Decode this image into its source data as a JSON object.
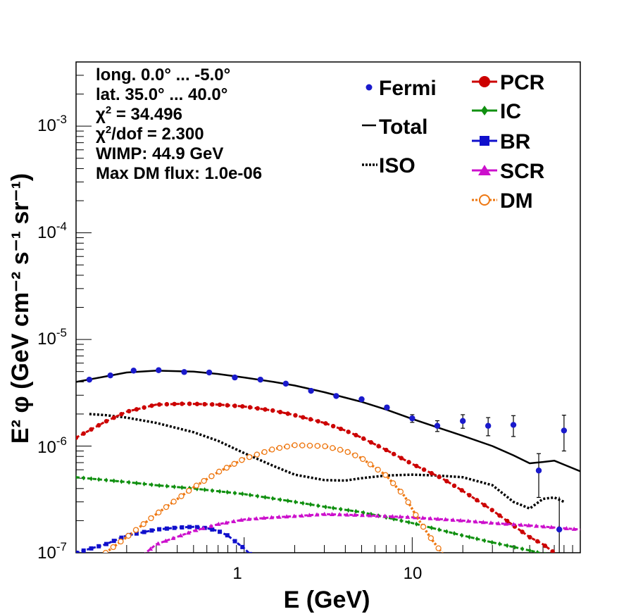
{
  "chart_data": {
    "type": "line",
    "xscale": "log",
    "yscale": "log",
    "xlim": [
      0.1,
      100
    ],
    "ylim": [
      1e-07,
      0.004
    ],
    "xlabel": "E (GeV)",
    "ylabel": "E² φ (GeV cm⁻² s⁻¹ sr⁻¹)",
    "x_ticks": [
      {
        "value": 1,
        "label": "1"
      },
      {
        "value": 10,
        "label": "10"
      }
    ],
    "y_ticks": [
      {
        "value": 1e-07,
        "base": "10",
        "exp": "-7"
      },
      {
        "value": 1e-06,
        "base": "10",
        "exp": "-6"
      },
      {
        "value": 1e-05,
        "base": "10",
        "exp": "-5"
      },
      {
        "value": 0.0001,
        "base": "10",
        "exp": "-4"
      },
      {
        "value": 0.001,
        "base": "10",
        "exp": "-3"
      }
    ],
    "info": {
      "longitude": "long. 0.0° ... -5.0°",
      "latitude": "lat. 35.0° ... 40.0°",
      "chi2_label": "χ",
      "chi2_exp": "2",
      "chi2_value": " = 34.496",
      "chi2dof_label": "χ",
      "chi2dof_exp": "2",
      "chi2dof_value": "/dof = 2.300",
      "wimp": "WIMP: 44.9 GeV",
      "max_dm_flux": "Max DM flux: 1.0e-06"
    },
    "legend": [
      {
        "name": "Fermi",
        "color": "#1010c8",
        "marker": "dot"
      },
      {
        "name": "Total",
        "color": "#000000",
        "marker": "line"
      },
      {
        "name": "ISO",
        "color": "#000000",
        "marker": "dotted"
      },
      {
        "name": "PCR",
        "color": "#cc0000",
        "marker": "circle"
      },
      {
        "name": "IC",
        "color": "#109010",
        "marker": "diamond"
      },
      {
        "name": "BR",
        "color": "#1010cc",
        "marker": "square"
      },
      {
        "name": "SCR",
        "color": "#cc10cc",
        "marker": "triangle"
      },
      {
        "name": "DM",
        "color": "#ee7711",
        "marker": "open-circle"
      }
    ],
    "fermi": {
      "name": "Fermi",
      "color": "#1a1acc",
      "x": [
        0.12,
        0.16,
        0.22,
        0.31,
        0.44,
        0.62,
        0.88,
        1.25,
        1.77,
        2.5,
        3.53,
        5.0,
        7.07,
        10.0,
        14.1,
        20.0,
        28.3,
        40.0,
        56.6,
        80.0
      ],
      "y": [
        4.2e-06,
        4.6e-06,
        5.1e-06,
        5.15e-06,
        4.95e-06,
        4.9e-06,
        4.4e-06,
        4.2e-06,
        3.85e-06,
        3.3e-06,
        2.95e-06,
        2.75e-06,
        2.3e-06,
        1.82e-06,
        1.55e-06,
        1.72e-06,
        1.55e-06,
        1.58e-06,
        5.9e-07,
        1.4e-06
      ],
      "yerr_low": [
        0,
        0,
        0,
        0,
        0,
        0,
        0,
        0,
        0,
        0,
        0,
        0,
        1e-07,
        1.5e-07,
        1.8e-07,
        2.5e-07,
        3e-07,
        3.5e-07,
        2.6e-07,
        5e-07
      ],
      "yerr_high": [
        0,
        0,
        0,
        0,
        0,
        0,
        0,
        0,
        0,
        0,
        0,
        0,
        1e-07,
        1.5e-07,
        1.8e-07,
        2.5e-07,
        3e-07,
        3.5e-07,
        2.6e-07,
        5.5e-07
      ]
    },
    "extra_point": {
      "x": 75,
      "y": 1.65e-07,
      "yerr_high": 1.7e-07
    },
    "series": [
      {
        "name": "Total",
        "color": "#000000",
        "style": "solid",
        "x": [
          0.1,
          0.15,
          0.2,
          0.3,
          0.5,
          0.7,
          1,
          1.5,
          2,
          3,
          5,
          7,
          10,
          15,
          20,
          30,
          40,
          50,
          60,
          70,
          80,
          100
        ],
        "y": [
          4e-06,
          4.5e-06,
          4.9e-06,
          5.1e-06,
          5e-06,
          4.75e-06,
          4.4e-06,
          4e-06,
          3.7e-06,
          3.2e-06,
          2.6e-06,
          2.2e-06,
          1.8e-06,
          1.45e-06,
          1.25e-06,
          1e-06,
          8.2e-07,
          6.9e-07,
          7.1e-07,
          7.3e-07,
          6.7e-07,
          5.8e-07
        ]
      },
      {
        "name": "ISO",
        "color": "#000000",
        "style": "dotted",
        "x": [
          0.12,
          0.15,
          0.2,
          0.3,
          0.5,
          0.7,
          1,
          1.5,
          2,
          3,
          4,
          5,
          7,
          10,
          14,
          20,
          30,
          40,
          50,
          60,
          70,
          80
        ],
        "y": [
          2e-06,
          1.95e-06,
          1.85e-06,
          1.65e-06,
          1.35e-06,
          1.12e-06,
          8.6e-07,
          6.5e-07,
          5.4e-07,
          4.8e-07,
          4.75e-07,
          5e-07,
          5.3e-07,
          5.4e-07,
          5.3e-07,
          5.1e-07,
          4.3e-07,
          3e-07,
          2.6e-07,
          3.2e-07,
          3.3e-07,
          3e-07
        ]
      },
      {
        "name": "PCR",
        "color": "#cc0000",
        "style": "dashed",
        "marker": "circle",
        "x": [
          0.1,
          0.15,
          0.2,
          0.3,
          0.45,
          0.7,
          1,
          1.5,
          2,
          3,
          4,
          5,
          7,
          10,
          15,
          20,
          30,
          40,
          50,
          60,
          70
        ],
        "y": [
          1.2e-06,
          1.7e-06,
          2.1e-06,
          2.45e-06,
          2.5e-06,
          2.45e-06,
          2.35e-06,
          2.15e-06,
          1.95e-06,
          1.65e-06,
          1.4e-06,
          1.2e-06,
          9.2e-07,
          6.8e-07,
          5e-07,
          3.8e-07,
          2.5e-07,
          1.8e-07,
          1.4e-07,
          1.2e-07,
          1e-07
        ]
      },
      {
        "name": "IC",
        "color": "#109010",
        "style": "dashed",
        "marker": "diamond",
        "x": [
          0.1,
          0.2,
          0.3,
          0.5,
          1,
          2,
          3,
          5,
          10,
          20,
          30,
          50,
          65
        ],
        "y": [
          5.1e-07,
          4.6e-07,
          4.3e-07,
          4e-07,
          3.55e-07,
          3e-07,
          2.7e-07,
          2.4e-07,
          1.9e-07,
          1.45e-07,
          1.25e-07,
          1.05e-07,
          9.5e-08
        ]
      },
      {
        "name": "BR",
        "color": "#1010cc",
        "style": "dashed",
        "marker": "square",
        "x": [
          0.1,
          0.15,
          0.2,
          0.3,
          0.4,
          0.5,
          0.6,
          0.7,
          0.8,
          0.9,
          1.0,
          1.1
        ],
        "y": [
          1e-07,
          1.2e-07,
          1.45e-07,
          1.65e-07,
          1.72e-07,
          1.75e-07,
          1.7e-07,
          1.6e-07,
          1.45e-07,
          1.25e-07,
          1.1e-07,
          9.5e-08
        ]
      },
      {
        "name": "SCR",
        "color": "#cc10cc",
        "style": "dashed",
        "marker": "triangle",
        "x": [
          0.25,
          0.3,
          0.5,
          0.7,
          1,
          1.5,
          2,
          3,
          5,
          10,
          20,
          30,
          50,
          100
        ],
        "y": [
          9.5e-08,
          1.2e-07,
          1.6e-07,
          1.85e-07,
          2.05e-07,
          2.15e-07,
          2.2e-07,
          2.3e-07,
          2.25e-07,
          2.15e-07,
          2e-07,
          1.9e-07,
          1.8e-07,
          1.65e-07
        ]
      },
      {
        "name": "DM",
        "color": "#ee7711",
        "style": "dotted",
        "marker": "open-circle",
        "x": [
          0.15,
          0.2,
          0.3,
          0.5,
          0.7,
          1,
          1.5,
          2,
          3,
          4,
          5,
          7,
          9,
          11,
          13,
          15,
          16
        ],
        "y": [
          1e-07,
          1.4e-07,
          2.3e-07,
          4.1e-07,
          5.7e-07,
          7.6e-07,
          9.4e-07,
          1.02e-06,
          1e-06,
          9e-07,
          7.7e-07,
          5.3e-07,
          3.4e-07,
          2e-07,
          1.35e-07,
          1e-07,
          9e-08
        ]
      }
    ]
  }
}
